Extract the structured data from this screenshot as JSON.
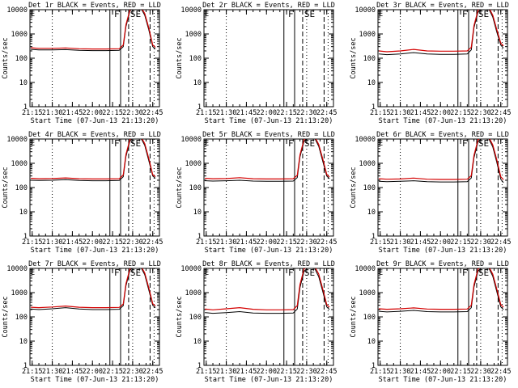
{
  "figure": {
    "colors": {
      "events": "#000000",
      "lld": "#d40000",
      "axes": "#000000",
      "background": "#ffffff"
    }
  },
  "chart_data": [
    {
      "type": "line",
      "title": "Det 1r BLACK = Events, RED = LLD",
      "xlabel": "Start Time (07-Jun-13 21:13:20)",
      "ylabel": "Counts/sec",
      "x_ticks": [
        "21:15",
        "21:30",
        "21:45",
        "22:00",
        "22:15",
        "22:30",
        "22:45"
      ],
      "y_ticks": [
        "1",
        "10",
        "100",
        "1000",
        "10000"
      ],
      "y_scale": "log",
      "ylim": [
        1,
        10000
      ],
      "xlim": [
        "21:13:20",
        "22:50:00"
      ],
      "markers": {
        "dotted": [
          "21:30",
          "22:30",
          "22:46"
        ],
        "solid": [
          "22:13",
          "22:21"
        ],
        "dashed": [
          "22:27",
          "22:43"
        ]
      },
      "annotations": [
        "F",
        "SE"
      ],
      "time": [
        "21:14",
        "21:20",
        "21:30",
        "21:40",
        "21:50",
        "22:00",
        "22:10",
        "22:20",
        "22:23",
        "22:25",
        "22:28",
        "22:32",
        "22:36",
        "22:39",
        "22:42",
        "22:45",
        "22:47"
      ],
      "series": [
        {
          "name": "Events",
          "values": [
            230,
            220,
            220,
            225,
            210,
            205,
            205,
            210,
            300,
            2000,
            9000,
            14000,
            12000,
            6000,
            1500,
            300,
            240
          ]
        },
        {
          "name": "LLD",
          "values": [
            270,
            255,
            255,
            265,
            245,
            240,
            240,
            245,
            350,
            2400,
            10000,
            15000,
            13000,
            7000,
            1800,
            350,
            280
          ]
        }
      ]
    },
    {
      "type": "line",
      "title": "Det 2r BLACK = Events, RED = LLD",
      "xlabel": "Start Time (07-Jun-13 21:13:20)",
      "ylabel": "Counts/sec",
      "x_ticks": [
        "21:15",
        "21:30",
        "21:45",
        "22:00",
        "22:15",
        "22:30",
        "22:45"
      ],
      "y_ticks": [
        "1",
        "10",
        "100",
        "1000",
        "10000"
      ],
      "y_scale": "log",
      "ylim": [
        1,
        10000
      ],
      "xlim": [
        "21:13:20",
        "22:50:00"
      ],
      "markers": {
        "dotted": [
          "21:30",
          "22:30",
          "22:46"
        ],
        "solid": [
          "22:13",
          "22:21"
        ],
        "dashed": [
          "22:27",
          "22:43"
        ]
      },
      "annotations": [
        "F",
        "SE"
      ],
      "time": [],
      "series": [
        {
          "name": "Events",
          "values": []
        },
        {
          "name": "LLD",
          "values": []
        }
      ]
    },
    {
      "type": "line",
      "title": "Det 3r BLACK = Events, RED = LLD",
      "xlabel": "Start Time (07-Jun-13 21:13:20)",
      "ylabel": "Counts/sec",
      "x_ticks": [
        "21:15",
        "21:30",
        "21:45",
        "22:00",
        "22:15",
        "22:30",
        "22:45"
      ],
      "y_ticks": [
        "1",
        "10",
        "100",
        "1000",
        "10000"
      ],
      "y_scale": "log",
      "ylim": [
        1,
        10000
      ],
      "xlim": [
        "21:13:20",
        "22:50:00"
      ],
      "markers": {
        "dotted": [
          "21:30",
          "22:30",
          "22:46"
        ],
        "solid": [
          "22:13",
          "22:21"
        ],
        "dashed": [
          "22:27",
          "22:43"
        ]
      },
      "annotations": [
        "F",
        "SE"
      ],
      "time": [
        "21:14",
        "21:20",
        "21:30",
        "21:40",
        "21:50",
        "22:00",
        "22:10",
        "22:20",
        "22:23",
        "22:25",
        "22:28",
        "22:32",
        "22:36",
        "22:39",
        "22:42",
        "22:45",
        "22:47"
      ],
      "series": [
        {
          "name": "Events",
          "values": [
            150,
            140,
            150,
            170,
            150,
            145,
            145,
            150,
            220,
            1800,
            8000,
            13000,
            11000,
            5000,
            1200,
            350,
            260
          ]
        },
        {
          "name": "LLD",
          "values": [
            200,
            185,
            200,
            230,
            200,
            195,
            195,
            200,
            280,
            2200,
            9500,
            14000,
            12500,
            6000,
            1500,
            420,
            320
          ]
        }
      ]
    },
    {
      "type": "line",
      "title": "Det 4r BLACK = Events, RED = LLD",
      "xlabel": "Start Time (07-Jun-13 21:13:20)",
      "ylabel": "Counts/sec",
      "x_ticks": [
        "21:15",
        "21:30",
        "21:45",
        "22:00",
        "22:15",
        "22:30",
        "22:45"
      ],
      "y_ticks": [
        "1",
        "10",
        "100",
        "1000",
        "10000"
      ],
      "y_scale": "log",
      "ylim": [
        1,
        10000
      ],
      "xlim": [
        "21:13:20",
        "22:50:00"
      ],
      "markers": {
        "dotted": [
          "21:30",
          "22:30",
          "22:46"
        ],
        "solid": [
          "22:13",
          "22:21"
        ],
        "dashed": [
          "22:27",
          "22:43"
        ]
      },
      "annotations": [
        "F",
        "SE"
      ],
      "time": [
        "21:14",
        "21:20",
        "21:30",
        "21:40",
        "21:50",
        "22:00",
        "22:10",
        "22:20",
        "22:23",
        "22:25",
        "22:28",
        "22:32",
        "22:36",
        "22:39",
        "22:42",
        "22:45",
        "22:47"
      ],
      "series": [
        {
          "name": "Events",
          "values": [
            200,
            195,
            200,
            210,
            195,
            190,
            190,
            195,
            280,
            1900,
            8500,
            13500,
            11500,
            5500,
            1300,
            300,
            240
          ]
        },
        {
          "name": "LLD",
          "values": [
            240,
            230,
            235,
            250,
            230,
            225,
            225,
            230,
            330,
            2300,
            9800,
            14500,
            13000,
            6500,
            1600,
            340,
            280
          ]
        }
      ]
    },
    {
      "type": "line",
      "title": "Det 5r BLACK = Events, RED = LLD",
      "xlabel": "Start Time (07-Jun-13 21:13:20)",
      "ylabel": "Counts/sec",
      "x_ticks": [
        "21:15",
        "21:30",
        "21:45",
        "22:00",
        "22:15",
        "22:30",
        "22:45"
      ],
      "y_ticks": [
        "1",
        "10",
        "100",
        "1000",
        "10000"
      ],
      "y_scale": "log",
      "ylim": [
        1,
        10000
      ],
      "xlim": [
        "21:13:20",
        "22:50:00"
      ],
      "markers": {
        "dotted": [
          "21:30",
          "22:30",
          "22:46"
        ],
        "solid": [
          "22:13",
          "22:21"
        ],
        "dashed": [
          "22:27",
          "22:43"
        ]
      },
      "annotations": [
        "F",
        "SE"
      ],
      "time": [
        "21:14",
        "21:20",
        "21:30",
        "21:40",
        "21:50",
        "22:00",
        "22:10",
        "22:20",
        "22:23",
        "22:25",
        "22:28",
        "22:32",
        "22:36",
        "22:39",
        "22:42",
        "22:45",
        "22:47"
      ],
      "series": [
        {
          "name": "Events",
          "values": [
            190,
            185,
            190,
            200,
            185,
            180,
            180,
            185,
            260,
            1800,
            8000,
            13000,
            11000,
            5000,
            1200,
            300,
            230
          ]
        },
        {
          "name": "LLD",
          "values": [
            240,
            230,
            235,
            255,
            230,
            225,
            225,
            230,
            320,
            2200,
            9500,
            14000,
            12500,
            6000,
            1500,
            350,
            270
          ]
        }
      ]
    },
    {
      "type": "line",
      "title": "Det 6r BLACK = Events, RED = LLD",
      "xlabel": "Start Time (07-Jun-13 21:13:20)",
      "ylabel": "Counts/sec",
      "x_ticks": [
        "21:15",
        "21:30",
        "21:45",
        "22:00",
        "22:15",
        "22:30",
        "22:45"
      ],
      "y_ticks": [
        "1",
        "10",
        "100",
        "1000",
        "10000"
      ],
      "y_scale": "log",
      "ylim": [
        1,
        10000
      ],
      "xlim": [
        "21:13:20",
        "22:50:00"
      ],
      "markers": {
        "dotted": [
          "21:30",
          "22:30",
          "22:46"
        ],
        "solid": [
          "22:13",
          "22:21"
        ],
        "dashed": [
          "22:27",
          "22:43"
        ]
      },
      "annotations": [
        "F",
        "SE"
      ],
      "time": [
        "21:14",
        "21:20",
        "21:30",
        "21:40",
        "21:50",
        "22:00",
        "22:10",
        "22:20",
        "22:23",
        "22:25",
        "22:28",
        "22:32",
        "22:36",
        "22:39",
        "22:42",
        "22:45",
        "22:47"
      ],
      "series": [
        {
          "name": "Events",
          "values": [
            180,
            175,
            180,
            190,
            175,
            170,
            170,
            175,
            250,
            1700,
            7800,
            12500,
            10500,
            4800,
            1100,
            220,
            160
          ]
        },
        {
          "name": "LLD",
          "values": [
            230,
            220,
            225,
            245,
            220,
            215,
            215,
            220,
            310,
            2100,
            9300,
            13800,
            12000,
            5800,
            1400,
            280,
            210
          ]
        }
      ]
    },
    {
      "type": "line",
      "title": "Det 7r BLACK = Events, RED = LLD",
      "xlabel": "Start Time (07-Jun-13 21:13:20)",
      "ylabel": "Counts/sec",
      "x_ticks": [
        "21:15",
        "21:30",
        "21:45",
        "22:00",
        "22:15",
        "22:30",
        "22:45"
      ],
      "y_ticks": [
        "1",
        "10",
        "100",
        "1000",
        "10000"
      ],
      "y_scale": "log",
      "ylim": [
        1,
        10000
      ],
      "xlim": [
        "21:13:20",
        "22:50:00"
      ],
      "markers": {
        "dotted": [
          "21:30",
          "22:30",
          "22:46"
        ],
        "solid": [
          "22:13",
          "22:21"
        ],
        "dashed": [
          "22:27",
          "22:43"
        ]
      },
      "annotations": [
        "F",
        "SE"
      ],
      "time": [
        "21:14",
        "21:20",
        "21:30",
        "21:40",
        "21:50",
        "22:00",
        "22:10",
        "22:20",
        "22:23",
        "22:25",
        "22:28",
        "22:32",
        "22:36",
        "22:39",
        "22:42",
        "22:45",
        "22:47"
      ],
      "series": [
        {
          "name": "Events",
          "values": [
            210,
            200,
            215,
            240,
            210,
            200,
            200,
            205,
            290,
            1900,
            8500,
            13500,
            11500,
            5500,
            1300,
            300,
            240
          ]
        },
        {
          "name": "LLD",
          "values": [
            250,
            240,
            255,
            280,
            250,
            240,
            240,
            245,
            340,
            2300,
            9800,
            14500,
            13000,
            6500,
            1600,
            350,
            280
          ]
        }
      ]
    },
    {
      "type": "line",
      "title": "Det 8r BLACK = Events, RED = LLD",
      "xlabel": "Start Time (07-Jun-13 21:13:20)",
      "ylabel": "Counts/sec",
      "x_ticks": [
        "21:15",
        "21:30",
        "21:45",
        "22:00",
        "22:15",
        "22:30",
        "22:45"
      ],
      "y_ticks": [
        "1",
        "10",
        "100",
        "1000",
        "10000"
      ],
      "y_scale": "log",
      "ylim": [
        1,
        10000
      ],
      "xlim": [
        "21:13:20",
        "22:50:00"
      ],
      "markers": {
        "dotted": [
          "21:30",
          "22:30",
          "22:46"
        ],
        "solid": [
          "22:13",
          "22:21"
        ],
        "dashed": [
          "22:27",
          "22:43"
        ]
      },
      "annotations": [
        "F",
        "SE"
      ],
      "time": [
        "21:14",
        "21:20",
        "21:30",
        "21:40",
        "21:50",
        "22:00",
        "22:10",
        "22:20",
        "22:23",
        "22:25",
        "22:28",
        "22:32",
        "22:36",
        "22:39",
        "22:42",
        "22:45",
        "22:47"
      ],
      "series": [
        {
          "name": "Events",
          "values": [
            150,
            140,
            150,
            165,
            145,
            140,
            140,
            145,
            210,
            1600,
            7500,
            12000,
            10000,
            4500,
            1100,
            260,
            200
          ]
        },
        {
          "name": "LLD",
          "values": [
            210,
            195,
            215,
            240,
            205,
            195,
            195,
            200,
            290,
            2100,
            9300,
            13800,
            12000,
            5800,
            1400,
            320,
            250
          ]
        }
      ]
    },
    {
      "type": "line",
      "title": "Det 9r BLACK = Events, RED = LLD",
      "xlabel": "Start Time (07-Jun-13 21:13:20)",
      "ylabel": "Counts/sec",
      "x_ticks": [
        "21:15",
        "21:30",
        "21:45",
        "22:00",
        "22:15",
        "22:30",
        "22:45"
      ],
      "y_ticks": [
        "1",
        "10",
        "100",
        "1000",
        "10000"
      ],
      "y_scale": "log",
      "ylim": [
        1,
        10000
      ],
      "xlim": [
        "21:13:20",
        "22:50:00"
      ],
      "markers": {
        "dotted": [
          "21:30",
          "22:30",
          "22:46"
        ],
        "solid": [
          "22:13",
          "22:21"
        ],
        "dashed": [
          "22:27",
          "22:43"
        ]
      },
      "annotations": [
        "F",
        "SE"
      ],
      "time": [
        "21:14",
        "21:20",
        "21:30",
        "21:40",
        "21:50",
        "22:00",
        "22:10",
        "22:20",
        "22:23",
        "22:25",
        "22:28",
        "22:32",
        "22:36",
        "22:39",
        "22:42",
        "22:45",
        "22:47"
      ],
      "series": [
        {
          "name": "Events",
          "values": [
            170,
            160,
            170,
            185,
            165,
            160,
            160,
            165,
            240,
            1700,
            7800,
            12500,
            10500,
            4800,
            1100,
            260,
            200
          ]
        },
        {
          "name": "LLD",
          "values": [
            215,
            205,
            215,
            235,
            210,
            205,
            205,
            210,
            300,
            2100,
            9300,
            13800,
            12000,
            5800,
            1400,
            320,
            250
          ]
        }
      ]
    }
  ]
}
